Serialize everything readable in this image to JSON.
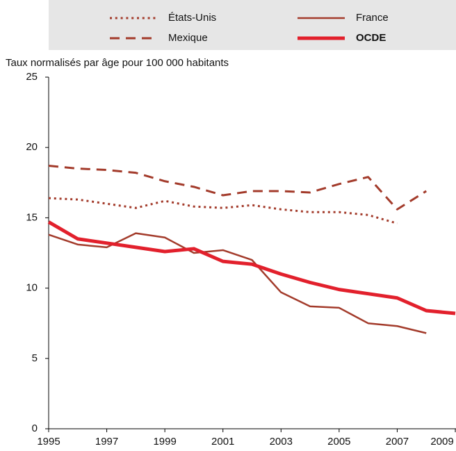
{
  "chart_data": {
    "type": "line",
    "y_axis_label": "Taux normalisés par âge pour 100 000 habitants",
    "x": [
      1995,
      1996,
      1997,
      1998,
      1999,
      2000,
      2001,
      2002,
      2003,
      2004,
      2005,
      2006,
      2007,
      2008,
      2009
    ],
    "series": [
      {
        "name": "États-Unis",
        "color": "#a33b2b",
        "style": "dotted",
        "width": 3,
        "values": [
          16.4,
          16.3,
          16.0,
          15.7,
          16.2,
          15.8,
          15.7,
          15.9,
          15.6,
          15.4,
          15.4,
          15.2,
          14.6,
          null,
          null
        ]
      },
      {
        "name": "Mexique",
        "color": "#a33b2b",
        "style": "dashed",
        "width": 3,
        "values": [
          18.7,
          18.5,
          18.4,
          18.2,
          17.6,
          17.2,
          16.6,
          16.9,
          16.9,
          16.8,
          17.4,
          17.9,
          15.6,
          16.9,
          null
        ]
      },
      {
        "name": "France",
        "color": "#a33b2b",
        "style": "solid",
        "width": 2.5,
        "values": [
          13.8,
          13.1,
          12.9,
          13.9,
          13.6,
          12.5,
          12.7,
          12.0,
          9.7,
          8.7,
          8.6,
          7.5,
          7.3,
          6.8,
          null
        ]
      },
      {
        "name": "OCDE",
        "color": "#e2202c",
        "style": "solid",
        "width": 5,
        "values": [
          14.7,
          13.5,
          13.2,
          12.9,
          12.6,
          12.8,
          11.9,
          11.7,
          11.0,
          10.4,
          9.9,
          9.6,
          9.3,
          8.4,
          8.2
        ]
      }
    ],
    "xlim": [
      1995,
      2009
    ],
    "xticks": [
      1995,
      1997,
      1999,
      2001,
      2003,
      2005,
      2007,
      2009
    ],
    "ylim": [
      0,
      25
    ],
    "yticks": [
      0,
      5,
      10,
      15,
      20,
      25
    ]
  }
}
